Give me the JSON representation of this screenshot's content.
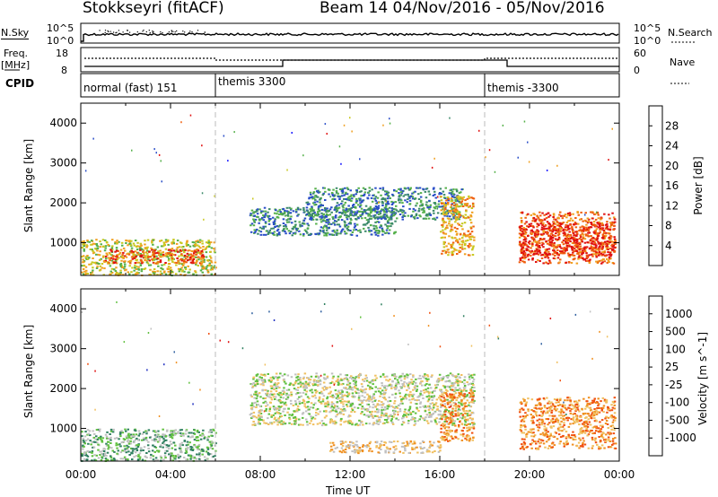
{
  "header": {
    "station_title": "Stokkseyri (fitACF)",
    "beam_title": "Beam 14  04/Nov/2016 - 05/Nov/2016"
  },
  "nsky_panel": {
    "left_label": "N.Sky",
    "left_top_tick": "10^5",
    "left_bottom_tick": "10^0",
    "right_label": "N.Search",
    "right_top_tick": "10^5",
    "right_bottom_tick": "10^0"
  },
  "freq_panel": {
    "left_label_1": "Freq.",
    "left_label_2": "[MHz]",
    "left_top_tick": "18",
    "left_bottom_tick": "8",
    "right_label": "Nave",
    "right_top_tick": "60",
    "right_bottom_tick": "0"
  },
  "cpid_panel": {
    "label": "CPID",
    "modes": [
      {
        "name": "normal (fast) 151",
        "start_hour": 0
      },
      {
        "name": "themis 3300",
        "start_hour": 6
      },
      {
        "name": "themis -3300",
        "start_hour": 18
      }
    ]
  },
  "chart_data": [
    {
      "type": "heatmap",
      "quantity": "Power",
      "ylabel": "Slant Range [km]",
      "xlabel": "",
      "ylim": [
        180,
        4500
      ],
      "yticks": [
        "1000",
        "2000",
        "3000",
        "4000"
      ],
      "colorbar_label": "Power [dB]",
      "colorbar_ticks": [
        "4",
        "8",
        "12",
        "16",
        "20",
        "24",
        "28"
      ],
      "colorbar_colors": [
        "#1a1aff",
        "#2a4ec8",
        "#3c8a6a",
        "#55b04a",
        "#c8c820",
        "#f0a020",
        "#f06010",
        "#e01010"
      ],
      "regions": [
        {
          "x": [
            0.0,
            6.0
          ],
          "y": [
            200,
            1100
          ],
          "level": 4
        },
        {
          "x": [
            1.0,
            5.5
          ],
          "y": [
            500,
            850
          ],
          "level": 6
        },
        {
          "x": [
            7.5,
            14.0
          ],
          "y": [
            1200,
            1900
          ],
          "level": 2
        },
        {
          "x": [
            10.0,
            17.0
          ],
          "y": [
            1600,
            2400
          ],
          "level": 2
        },
        {
          "x": [
            16.0,
            17.5
          ],
          "y": [
            700,
            2200
          ],
          "level": 5
        },
        {
          "x": [
            19.5,
            23.8
          ],
          "y": [
            500,
            1800
          ],
          "level": 6
        },
        {
          "x": [
            19.5,
            23.8
          ],
          "y": [
            700,
            1500
          ],
          "level": 7
        }
      ]
    },
    {
      "type": "heatmap",
      "quantity": "Velocity",
      "ylabel": "Slant Range [km]",
      "xlabel": "Time UT",
      "ylim": [
        180,
        4500
      ],
      "yticks": [
        "1000",
        "2000",
        "3000",
        "4000"
      ],
      "xticks": [
        "00:00",
        "04:00",
        "08:00",
        "12:00",
        "16:00",
        "20:00",
        "00:00"
      ],
      "colorbar_label": "Velocity [m s^-1]",
      "colorbar_ticks": [
        "1000",
        "500",
        "100",
        "25",
        "-25",
        "-100",
        "-500",
        "-1000"
      ],
      "colorbar_colors": [
        "#2030c0",
        "#3060a0",
        "#308060",
        "#60c040",
        "#c0c0c0",
        "#f0c060",
        "#f09020",
        "#f05010",
        "#e01010"
      ],
      "regions": [
        {
          "x": [
            0.0,
            6.0
          ],
          "y": [
            200,
            1000
          ],
          "level": 3
        },
        {
          "x": [
            7.5,
            17.5
          ],
          "y": [
            1100,
            2400
          ],
          "level": 4
        },
        {
          "x": [
            16.0,
            17.5
          ],
          "y": [
            700,
            2000
          ],
          "level": 6
        },
        {
          "x": [
            19.5,
            23.8
          ],
          "y": [
            500,
            1800
          ],
          "level": 6
        },
        {
          "x": [
            11.0,
            16.0
          ],
          "y": [
            400,
            700
          ],
          "level": 5
        }
      ]
    }
  ]
}
